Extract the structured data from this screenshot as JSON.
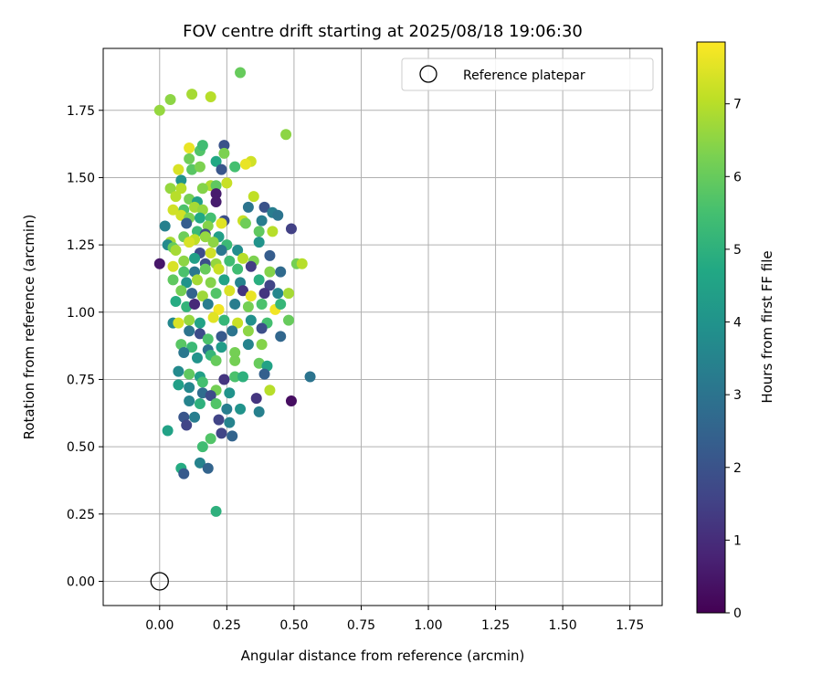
{
  "chart_data": {
    "type": "scatter",
    "title": "FOV centre drift starting at 2025/08/18 19:06:30",
    "xlabel": "Angular distance from reference (arcmin)",
    "ylabel": "Rotation from reference (arcmin)",
    "xlim": [
      -0.21,
      1.87
    ],
    "ylim": [
      -0.09,
      1.98
    ],
    "xticks": [
      "0.00",
      "0.25",
      "0.50",
      "0.75",
      "1.00",
      "1.25",
      "1.50",
      "1.75"
    ],
    "yticks": [
      "0.00",
      "0.25",
      "0.50",
      "0.75",
      "1.00",
      "1.25",
      "1.50",
      "1.75"
    ],
    "grid": true,
    "colormap": "viridis",
    "colorbar": {
      "label": "Hours from first FF file",
      "range": [
        0,
        7.85
      ],
      "ticks": [
        "0",
        "1",
        "2",
        "3",
        "4",
        "5",
        "6",
        "7"
      ]
    },
    "legend": {
      "position": "upper-right",
      "entries": [
        {
          "label": "Reference platepar",
          "marker": "open-circle"
        }
      ]
    },
    "reference_point": {
      "x": 0.0,
      "y": 0.0
    },
    "points": [
      [
        0.0,
        1.75,
        6.6
      ],
      [
        0.04,
        1.79,
        6.5
      ],
      [
        0.12,
        1.81,
        6.8
      ],
      [
        0.19,
        1.8,
        7.0
      ],
      [
        0.3,
        1.89,
        6.0
      ],
      [
        0.47,
        1.66,
        6.5
      ],
      [
        0.11,
        1.61,
        7.6
      ],
      [
        0.15,
        1.6,
        5.7
      ],
      [
        0.16,
        1.62,
        5.4
      ],
      [
        0.24,
        1.62,
        2.0
      ],
      [
        0.11,
        1.57,
        6.1
      ],
      [
        0.21,
        1.56,
        4.7
      ],
      [
        0.24,
        1.59,
        6.3
      ],
      [
        0.34,
        1.56,
        7.3
      ],
      [
        0.32,
        1.55,
        7.6
      ],
      [
        0.07,
        1.53,
        7.4
      ],
      [
        0.12,
        1.53,
        5.8
      ],
      [
        0.15,
        1.54,
        6.3
      ],
      [
        0.23,
        1.53,
        2.1
      ],
      [
        0.28,
        1.54,
        5.5
      ],
      [
        0.08,
        1.49,
        4.0
      ],
      [
        0.19,
        1.47,
        6.9
      ],
      [
        0.21,
        1.47,
        5.9
      ],
      [
        0.25,
        1.48,
        7.2
      ],
      [
        0.04,
        1.46,
        6.6
      ],
      [
        0.08,
        1.46,
        7.0
      ],
      [
        0.16,
        1.46,
        6.4
      ],
      [
        0.21,
        1.44,
        0.6
      ],
      [
        0.06,
        1.43,
        7.0
      ],
      [
        0.11,
        1.42,
        6.2
      ],
      [
        0.14,
        1.41,
        4.4
      ],
      [
        0.21,
        1.41,
        0.6
      ],
      [
        0.35,
        1.43,
        7.1
      ],
      [
        0.09,
        1.38,
        5.6
      ],
      [
        0.05,
        1.38,
        7.3
      ],
      [
        0.13,
        1.39,
        6.8
      ],
      [
        0.16,
        1.38,
        6.6
      ],
      [
        0.33,
        1.39,
        3.0
      ],
      [
        0.39,
        1.39,
        2.0
      ],
      [
        0.42,
        1.37,
        3.3
      ],
      [
        0.44,
        1.36,
        3.0
      ],
      [
        0.08,
        1.36,
        7.3
      ],
      [
        0.11,
        1.35,
        6.3
      ],
      [
        0.15,
        1.35,
        4.7
      ],
      [
        0.19,
        1.35,
        5.5
      ],
      [
        0.24,
        1.34,
        1.9
      ],
      [
        0.31,
        1.34,
        7.2
      ],
      [
        0.38,
        1.34,
        3.3
      ],
      [
        0.49,
        1.31,
        1.5
      ],
      [
        0.02,
        1.32,
        3.4
      ],
      [
        0.1,
        1.33,
        2.3
      ],
      [
        0.18,
        1.32,
        6.4
      ],
      [
        0.23,
        1.33,
        7.5
      ],
      [
        0.32,
        1.33,
        6.1
      ],
      [
        0.14,
        1.3,
        5.3
      ],
      [
        0.17,
        1.29,
        1.8
      ],
      [
        0.37,
        1.3,
        5.9
      ],
      [
        0.42,
        1.3,
        7.0
      ],
      [
        0.09,
        1.28,
        6.1
      ],
      [
        0.13,
        1.27,
        7.1
      ],
      [
        0.17,
        1.28,
        6.6
      ],
      [
        0.22,
        1.28,
        4.4
      ],
      [
        0.25,
        1.25,
        5.3
      ],
      [
        0.04,
        1.26,
        6.8
      ],
      [
        0.11,
        1.26,
        7.4
      ],
      [
        0.2,
        1.26,
        6.5
      ],
      [
        0.37,
        1.26,
        4.0
      ],
      [
        0.03,
        1.25,
        3.7
      ],
      [
        0.05,
        1.24,
        6.0
      ],
      [
        0.06,
        1.23,
        6.8
      ],
      [
        0.15,
        1.22,
        1.8
      ],
      [
        0.19,
        1.22,
        7.3
      ],
      [
        0.23,
        1.23,
        3.1
      ],
      [
        0.29,
        1.23,
        3.8
      ],
      [
        0.41,
        1.21,
        2.3
      ],
      [
        0.0,
        1.18,
        0.5
      ],
      [
        0.05,
        1.17,
        7.4
      ],
      [
        0.09,
        1.19,
        6.5
      ],
      [
        0.13,
        1.2,
        4.4
      ],
      [
        0.17,
        1.18,
        1.9
      ],
      [
        0.21,
        1.18,
        6.6
      ],
      [
        0.26,
        1.19,
        5.4
      ],
      [
        0.31,
        1.2,
        7.0
      ],
      [
        0.35,
        1.19,
        6.3
      ],
      [
        0.09,
        1.15,
        5.6
      ],
      [
        0.13,
        1.15,
        3.1
      ],
      [
        0.17,
        1.16,
        6.0
      ],
      [
        0.22,
        1.16,
        7.2
      ],
      [
        0.29,
        1.16,
        5.4
      ],
      [
        0.34,
        1.17,
        1.4
      ],
      [
        0.41,
        1.15,
        6.4
      ],
      [
        0.45,
        1.15,
        2.7
      ],
      [
        0.51,
        1.18,
        6.2
      ],
      [
        0.53,
        1.18,
        7.0
      ],
      [
        0.05,
        1.12,
        5.9
      ],
      [
        0.1,
        1.11,
        4.0
      ],
      [
        0.14,
        1.12,
        6.8
      ],
      [
        0.19,
        1.11,
        6.4
      ],
      [
        0.24,
        1.12,
        4.5
      ],
      [
        0.3,
        1.11,
        3.5
      ],
      [
        0.37,
        1.12,
        4.9
      ],
      [
        0.41,
        1.1,
        1.6
      ],
      [
        0.08,
        1.08,
        6.2
      ],
      [
        0.12,
        1.07,
        2.5
      ],
      [
        0.16,
        1.06,
        6.7
      ],
      [
        0.21,
        1.07,
        5.7
      ],
      [
        0.26,
        1.08,
        7.4
      ],
      [
        0.31,
        1.08,
        1.2
      ],
      [
        0.34,
        1.06,
        7.6
      ],
      [
        0.39,
        1.07,
        1.2
      ],
      [
        0.44,
        1.07,
        3.6
      ],
      [
        0.48,
        1.07,
        6.8
      ],
      [
        0.06,
        1.04,
        4.8
      ],
      [
        0.1,
        1.02,
        5.1
      ],
      [
        0.13,
        1.03,
        0.9
      ],
      [
        0.18,
        1.03,
        3.3
      ],
      [
        0.22,
        1.01,
        7.7
      ],
      [
        0.28,
        1.03,
        3.3
      ],
      [
        0.33,
        1.02,
        6.2
      ],
      [
        0.38,
        1.03,
        5.6
      ],
      [
        0.43,
        1.01,
        7.7
      ],
      [
        0.45,
        1.03,
        5.2
      ],
      [
        0.05,
        0.96,
        3.6
      ],
      [
        0.07,
        0.96,
        7.4
      ],
      [
        0.11,
        0.97,
        6.6
      ],
      [
        0.15,
        0.96,
        4.5
      ],
      [
        0.2,
        0.98,
        7.5
      ],
      [
        0.24,
        0.97,
        5.2
      ],
      [
        0.29,
        0.96,
        7.2
      ],
      [
        0.34,
        0.97,
        3.9
      ],
      [
        0.4,
        0.96,
        5.5
      ],
      [
        0.48,
        0.97,
        6.0
      ],
      [
        0.11,
        0.93,
        3.0
      ],
      [
        0.15,
        0.92,
        1.8
      ],
      [
        0.18,
        0.9,
        5.6
      ],
      [
        0.23,
        0.91,
        2.2
      ],
      [
        0.27,
        0.93,
        3.0
      ],
      [
        0.33,
        0.93,
        6.5
      ],
      [
        0.38,
        0.94,
        1.9
      ],
      [
        0.45,
        0.91,
        2.6
      ],
      [
        0.08,
        0.88,
        5.8
      ],
      [
        0.12,
        0.87,
        5.3
      ],
      [
        0.18,
        0.86,
        2.9
      ],
      [
        0.23,
        0.87,
        4.3
      ],
      [
        0.28,
        0.85,
        6.2
      ],
      [
        0.33,
        0.88,
        3.5
      ],
      [
        0.38,
        0.88,
        6.4
      ],
      [
        0.09,
        0.85,
        3.1
      ],
      [
        0.14,
        0.83,
        4.0
      ],
      [
        0.19,
        0.84,
        5.2
      ],
      [
        0.21,
        0.82,
        6.0
      ],
      [
        0.28,
        0.82,
        6.2
      ],
      [
        0.37,
        0.81,
        6.0
      ],
      [
        0.4,
        0.8,
        4.5
      ],
      [
        0.07,
        0.78,
        3.7
      ],
      [
        0.11,
        0.77,
        5.9
      ],
      [
        0.15,
        0.76,
        4.4
      ],
      [
        0.24,
        0.75,
        1.2
      ],
      [
        0.28,
        0.76,
        5.6
      ],
      [
        0.31,
        0.76,
        5.0
      ],
      [
        0.39,
        0.77,
        2.4
      ],
      [
        0.56,
        0.76,
        3.0
      ],
      [
        0.07,
        0.73,
        4.4
      ],
      [
        0.11,
        0.72,
        3.6
      ],
      [
        0.16,
        0.74,
        5.5
      ],
      [
        0.21,
        0.71,
        6.2
      ],
      [
        0.26,
        0.7,
        4.0
      ],
      [
        0.16,
        0.7,
        2.8
      ],
      [
        0.19,
        0.69,
        1.8
      ],
      [
        0.36,
        0.68,
        1.2
      ],
      [
        0.41,
        0.71,
        7.0
      ],
      [
        0.11,
        0.67,
        3.5
      ],
      [
        0.15,
        0.66,
        5.0
      ],
      [
        0.21,
        0.66,
        5.7
      ],
      [
        0.25,
        0.64,
        3.3
      ],
      [
        0.3,
        0.64,
        4.0
      ],
      [
        0.37,
        0.63,
        3.4
      ],
      [
        0.49,
        0.67,
        0.3
      ],
      [
        0.09,
        0.61,
        2.1
      ],
      [
        0.13,
        0.61,
        3.3
      ],
      [
        0.22,
        0.6,
        1.6
      ],
      [
        0.26,
        0.59,
        3.5
      ],
      [
        0.03,
        0.56,
        4.5
      ],
      [
        0.1,
        0.58,
        1.6
      ],
      [
        0.23,
        0.55,
        1.6
      ],
      [
        0.27,
        0.54,
        2.5
      ],
      [
        0.16,
        0.5,
        5.4
      ],
      [
        0.19,
        0.53,
        5.7
      ],
      [
        0.08,
        0.42,
        4.8
      ],
      [
        0.09,
        0.4,
        2.2
      ],
      [
        0.15,
        0.44,
        3.5
      ],
      [
        0.18,
        0.42,
        2.5
      ],
      [
        0.21,
        0.26,
        5.0
      ]
    ]
  }
}
